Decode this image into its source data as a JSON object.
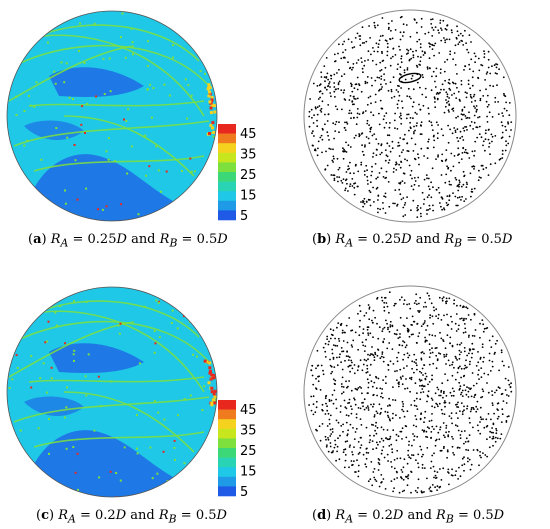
{
  "panels": [
    {
      "id": "a",
      "type": "heatmap",
      "letter": "a",
      "ra": "0.25",
      "rb": "0.5",
      "mid": "and"
    },
    {
      "id": "b",
      "type": "scatter",
      "letter": "b",
      "ra": "0.25",
      "rb": "0.5",
      "mid": "and"
    },
    {
      "id": "c",
      "type": "heatmap",
      "letter": "c",
      "ra": "0.2",
      "rb": "0.5",
      "mid": "and"
    },
    {
      "id": "d",
      "type": "scatter",
      "letter": "d",
      "ra": "0.2",
      "rb": "0.5",
      "mid": "and"
    }
  ],
  "colorbar": {
    "ticks": [
      "45",
      "35",
      "25",
      "15",
      "5"
    ],
    "colors": [
      "#e8281e",
      "#f07a1e",
      "#f5d21e",
      "#c8e61e",
      "#7ee03c",
      "#3cd878",
      "#28d4b4",
      "#1ec8e6",
      "#1e9ae6",
      "#1e5ae6"
    ]
  },
  "colors": {
    "background": "#1ec8e6",
    "dark_region": "#1e78e6",
    "streak": "#7ee03c",
    "hot": "#e8281e",
    "circle_outline": "#888888"
  }
}
